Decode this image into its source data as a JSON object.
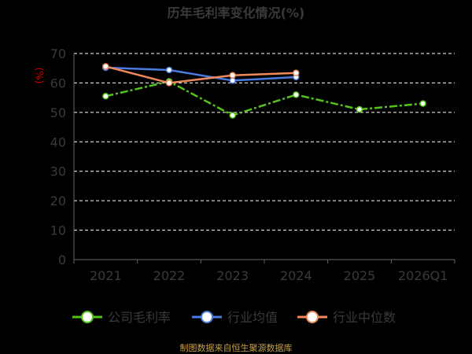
{
  "chart_data": {
    "type": "line",
    "title": "历年毛利率变化情况(%)",
    "ylabel": "(%)",
    "xlabel": "",
    "categories": [
      "2021",
      "2022",
      "2023",
      "2024",
      "2025",
      "2026Q1"
    ],
    "ylim": [
      0,
      70
    ],
    "yticks": [
      0,
      10,
      20,
      30,
      40,
      50,
      60,
      70
    ],
    "grid": true,
    "legend_position": "bottom",
    "series": [
      {
        "name": "公司毛利率",
        "color": "#52c41a",
        "dashed": true,
        "values": [
          55.5,
          60.5,
          49.0,
          56.0,
          51.0,
          53.0
        ]
      },
      {
        "name": "行业均值",
        "color": "#4a7be0",
        "dashed": false,
        "values": [
          65.2,
          64.4,
          60.8,
          62.0,
          null,
          null
        ]
      },
      {
        "name": "行业中位数",
        "color": "#f08a5d",
        "dashed": false,
        "values": [
          65.6,
          60.0,
          62.6,
          63.4,
          null,
          null
        ]
      }
    ]
  },
  "footer": {
    "source": "制图数据来自恒生聚源数据库"
  }
}
